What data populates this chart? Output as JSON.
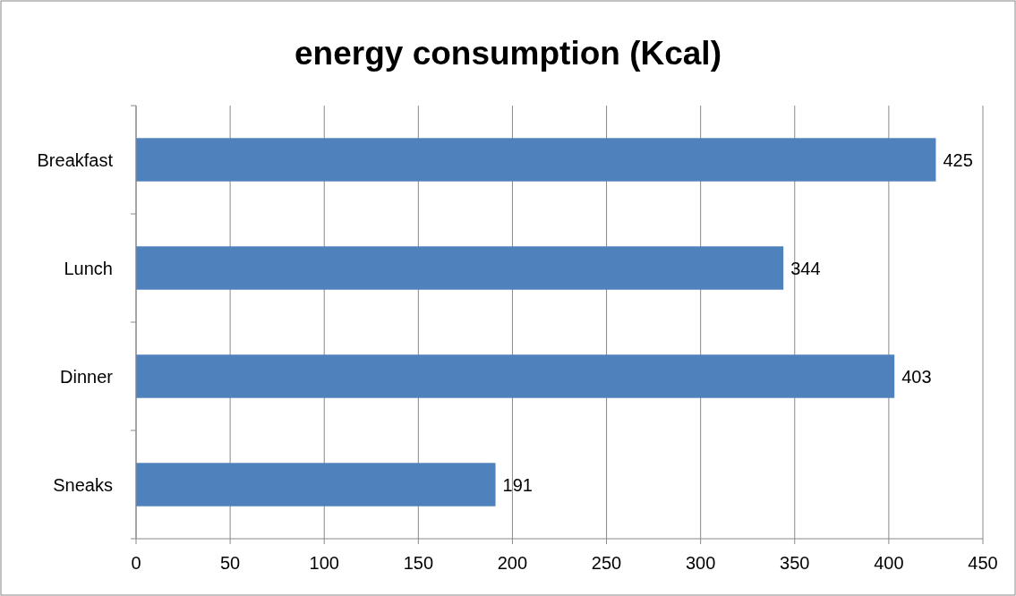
{
  "chart_data": {
    "type": "bar",
    "title": "energy consumption (Kcal)",
    "orientation": "horizontal",
    "categories": [
      "Breakfast",
      "Lunch",
      "Dinner",
      "Sneaks"
    ],
    "values": [
      425,
      344,
      403,
      191
    ],
    "color": "#4f81bd",
    "xlim": [
      0,
      450
    ],
    "xticks": [
      0,
      50,
      100,
      150,
      200,
      250,
      300,
      350,
      400,
      450
    ],
    "grid": "x",
    "data_labels": true
  }
}
